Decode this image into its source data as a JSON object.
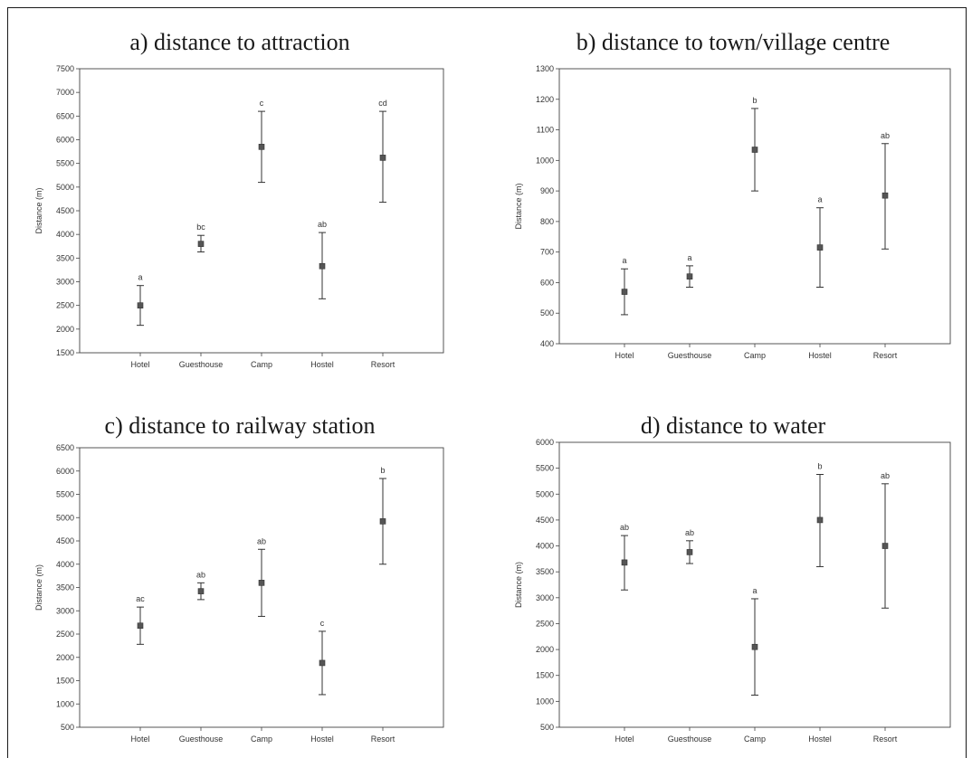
{
  "chart_data": [
    {
      "type": "scatter",
      "title": "a) distance to attraction",
      "ylabel": "Distance (m)",
      "ylim": [
        1500,
        7500
      ],
      "yticks": [
        1500,
        2000,
        2500,
        3000,
        3500,
        4000,
        4500,
        5000,
        5500,
        6000,
        6500,
        7000,
        7500
      ],
      "categories": [
        "Hotel",
        "Guesthouse",
        "Camp",
        "Hostel",
        "Resort"
      ],
      "series": [
        {
          "values": [
            2500,
            3800,
            5850,
            3330,
            5620
          ],
          "lower": [
            2080,
            3630,
            5100,
            2640,
            4680
          ],
          "upper": [
            2920,
            3980,
            6600,
            4040,
            6600
          ],
          "groups": [
            "a",
            "bc",
            "c",
            "ab",
            "cd"
          ]
        }
      ]
    },
    {
      "type": "scatter",
      "title": "b) distance to town/village centre",
      "ylabel": "Distance (m)",
      "ylim": [
        400,
        1300
      ],
      "yticks": [
        400,
        500,
        600,
        700,
        800,
        900,
        1000,
        1100,
        1200,
        1300
      ],
      "categories": [
        "Hotel",
        "Guesthouse",
        "Camp",
        "Hostel",
        "Resort"
      ],
      "series": [
        {
          "values": [
            570,
            620,
            1035,
            715,
            885
          ],
          "lower": [
            495,
            585,
            900,
            585,
            710
          ],
          "upper": [
            645,
            655,
            1170,
            845,
            1055
          ],
          "groups": [
            "a",
            "a",
            "b",
            "a",
            "ab"
          ]
        }
      ]
    },
    {
      "type": "scatter",
      "title": "c) distance to railway station",
      "ylabel": "Distance (m)",
      "ylim": [
        500,
        6500
      ],
      "yticks": [
        500,
        1000,
        1500,
        2000,
        2500,
        3000,
        3500,
        4000,
        4500,
        5000,
        5500,
        6000,
        6500
      ],
      "categories": [
        "Hotel",
        "Guesthouse",
        "Camp",
        "Hostel",
        "Resort"
      ],
      "series": [
        {
          "values": [
            2680,
            3420,
            3600,
            1880,
            4920
          ],
          "lower": [
            2280,
            3240,
            2880,
            1200,
            4000
          ],
          "upper": [
            3080,
            3600,
            4320,
            2560,
            5840
          ],
          "groups": [
            "ac",
            "ab",
            "ab",
            "c",
            "b"
          ]
        }
      ]
    },
    {
      "type": "scatter",
      "title": "d) distance to water",
      "ylabel": "Distance (m)",
      "ylim": [
        500,
        6000
      ],
      "yticks": [
        500,
        1000,
        1500,
        2000,
        2500,
        3000,
        3500,
        4000,
        4500,
        5000,
        5500,
        6000
      ],
      "categories": [
        "Hotel",
        "Guesthouse",
        "Camp",
        "Hostel",
        "Resort"
      ],
      "series": [
        {
          "values": [
            3680,
            3880,
            2050,
            4500,
            4000
          ],
          "lower": [
            3150,
            3660,
            1120,
            3600,
            2800
          ],
          "upper": [
            4200,
            4100,
            2980,
            5380,
            5200
          ],
          "groups": [
            "ab",
            "ab",
            "a",
            "b",
            "ab"
          ]
        }
      ]
    }
  ]
}
